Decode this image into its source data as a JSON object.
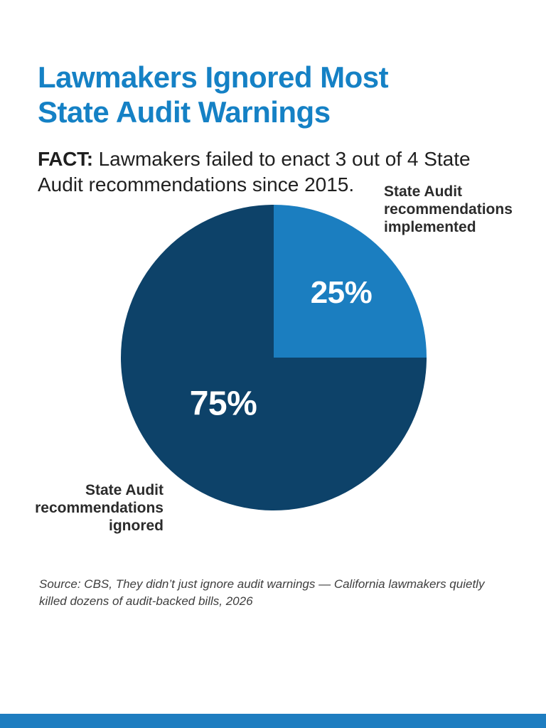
{
  "page": {
    "background": "#ffffff"
  },
  "title": {
    "line1": "Lawmakers Ignored Most",
    "line2": "State Audit Warnings",
    "color": "#1581c5"
  },
  "fact": {
    "label": "FACT:",
    "line1": "Lawmakers failed to enact 3 out of 4 State",
    "line2": "Audit recommendations since 2015."
  },
  "chart_data": {
    "type": "pie",
    "title": "Lawmakers Ignored Most State Audit Warnings",
    "start_angle_deg": 0,
    "direction": "clockwise",
    "legend_position": "callout-labels",
    "slices": [
      {
        "label": "State Audit recommendations implemented",
        "value": 25,
        "display": "25%",
        "color": "#1b7ec0"
      },
      {
        "label": "State Audit recommendations ignored",
        "value": 75,
        "display": "75%",
        "color": "#0d4269"
      }
    ]
  },
  "callouts": {
    "implemented": "State Audit recommendations implemented",
    "ignored": "State Audit recommendations ignored"
  },
  "source": {
    "line1": "Source: CBS, They didn’t just ignore audit warnings — California lawmakers quietly",
    "line2": "killed dozens of audit-backed bills, 2026"
  },
  "footer": {
    "bar_color": "#1e7dc0"
  }
}
